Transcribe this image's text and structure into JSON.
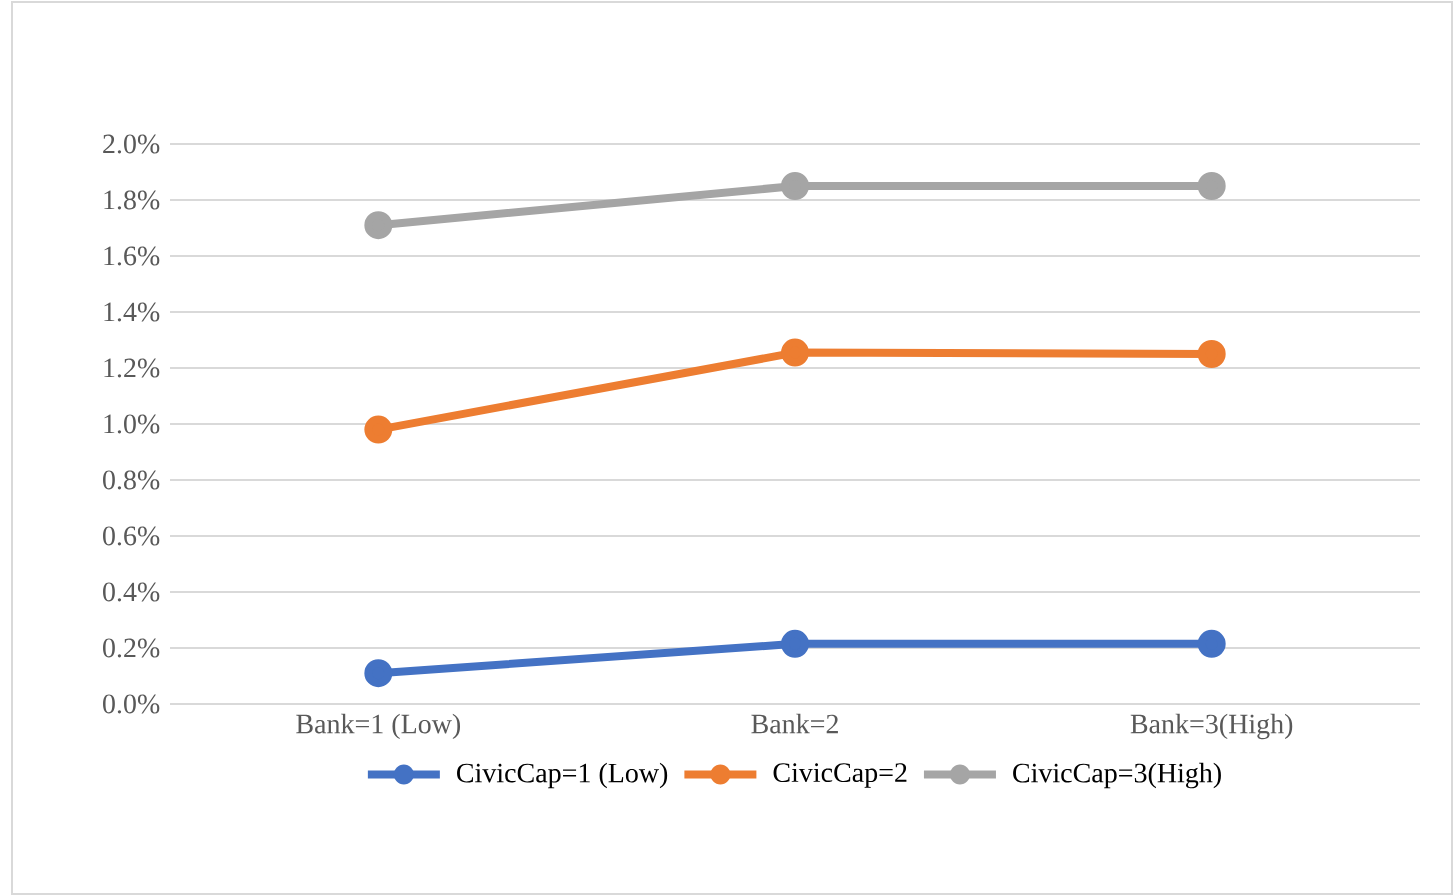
{
  "chart_data": {
    "type": "line",
    "categories": [
      "Bank=1 (Low)",
      "Bank=2",
      "Bank=3(High)"
    ],
    "series": [
      {
        "name": "CivicCap=1 (Low)",
        "color": "#4472c4",
        "values": [
          0.11,
          0.215,
          0.215
        ]
      },
      {
        "name": "CivicCap=2",
        "color": "#ed7d31",
        "values": [
          0.98,
          1.255,
          1.25
        ]
      },
      {
        "name": "CivicCap=3(High)",
        "color": "#a5a5a5",
        "values": [
          1.71,
          1.85,
          1.85
        ]
      }
    ],
    "ylim": [
      0,
      2
    ],
    "yticks": [
      {
        "value": 0,
        "label": "0.0%"
      },
      {
        "value": 0.2,
        "label": "0.2%"
      },
      {
        "value": 0.4,
        "label": "0.4%"
      },
      {
        "value": 0.6,
        "label": "0.6%"
      },
      {
        "value": 0.8,
        "label": "0.8%"
      },
      {
        "value": 1,
        "label": "1.0%"
      },
      {
        "value": 1.2,
        "label": "1.2%"
      },
      {
        "value": 1.4,
        "label": "1.4%"
      },
      {
        "value": 1.6,
        "label": "1.6%"
      },
      {
        "value": 1.8,
        "label": "1.8%"
      },
      {
        "value": 2,
        "label": "2.0%"
      }
    ],
    "grid": "y",
    "legend": "bottom",
    "marker": "circle",
    "line_style": "solid"
  }
}
